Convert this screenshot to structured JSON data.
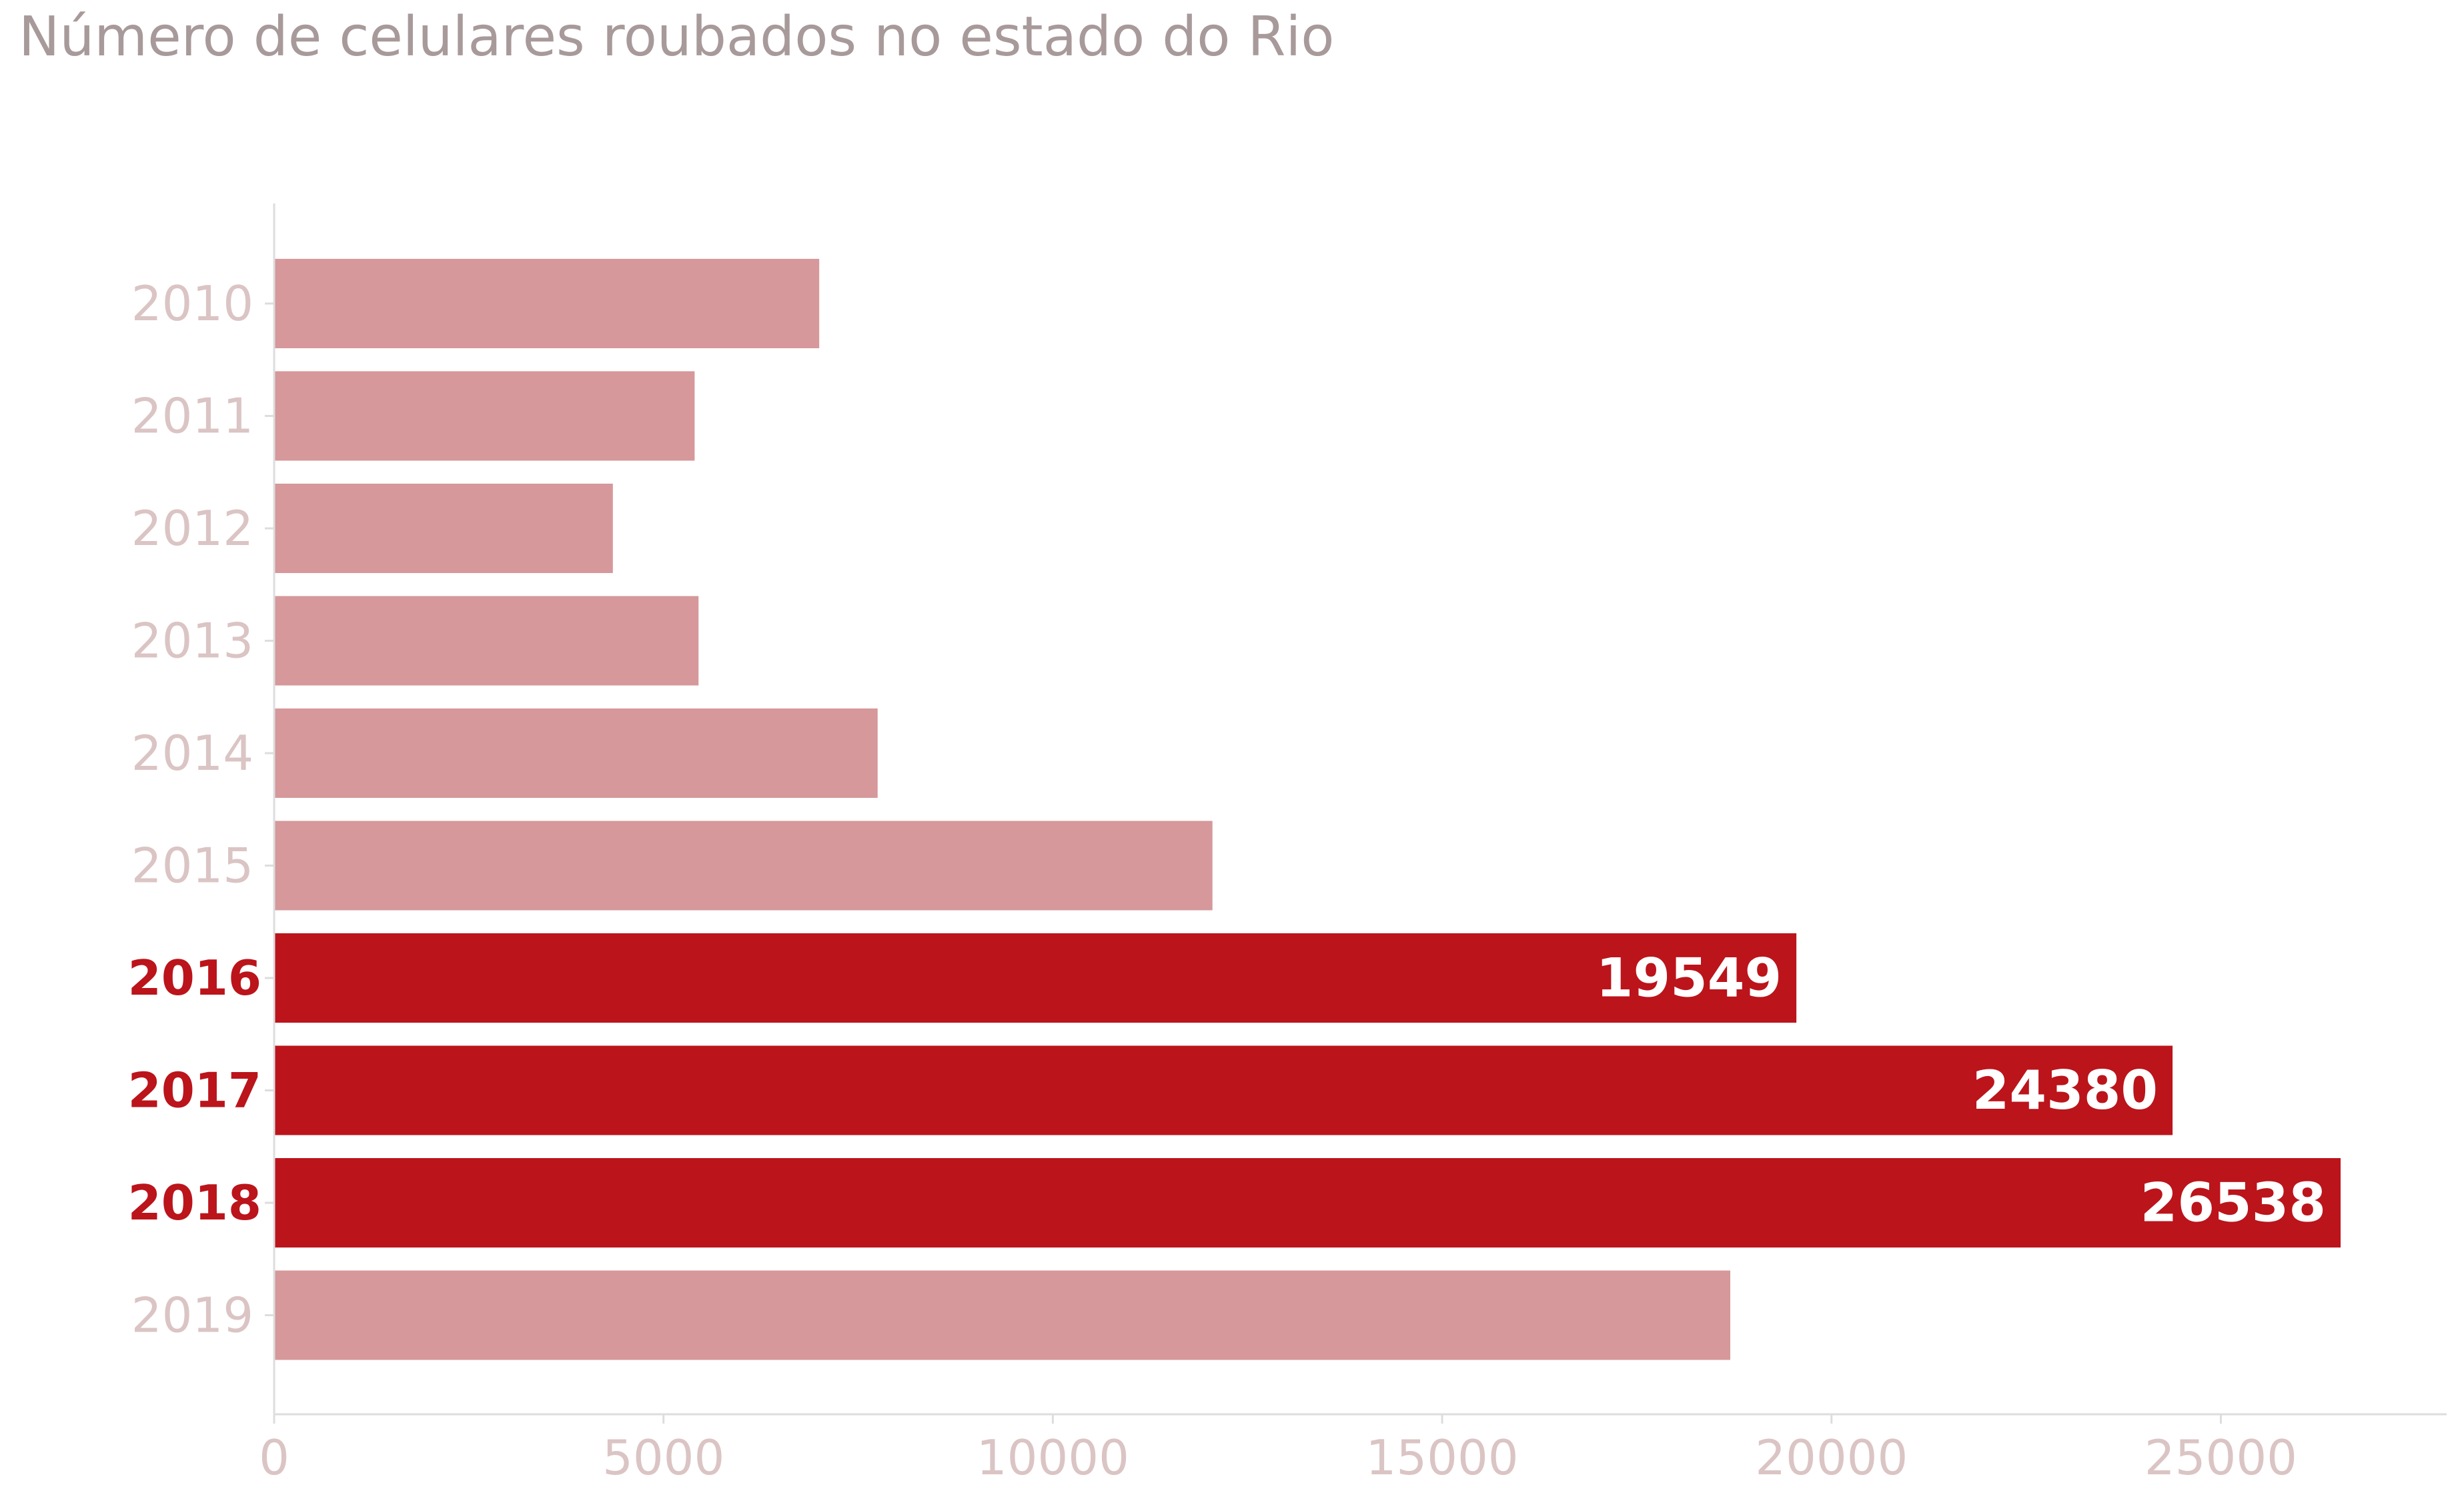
{
  "chart_data": {
    "type": "bar",
    "orientation": "horizontal",
    "title": "Número de celulares roubados no estado do Rio",
    "xlabel": "",
    "ylabel": "",
    "categories": [
      "2010",
      "2011",
      "2012",
      "2013",
      "2014",
      "2015",
      "2016",
      "2017",
      "2018",
      "2019"
    ],
    "values": [
      7000,
      5400,
      4350,
      5450,
      7750,
      12050,
      19549,
      24380,
      26538,
      18700
    ],
    "highlighted": [
      "2016",
      "2017",
      "2018"
    ],
    "data_labels": {
      "2016": "19549",
      "2017": "24380",
      "2018": "26538"
    },
    "xlim": [
      0,
      27900
    ],
    "xticks": [
      0,
      5000,
      10000,
      15000,
      20000,
      25000
    ],
    "xtick_labels": [
      "0",
      "5000",
      "10000",
      "15000",
      "20000",
      "25000"
    ],
    "grid": false,
    "colors": {
      "bar": "#d6989a",
      "highlight": "#bb141b",
      "tick_label": "#dbc4c4",
      "title": "#a89a9a",
      "data_label": "#ffffff"
    }
  }
}
